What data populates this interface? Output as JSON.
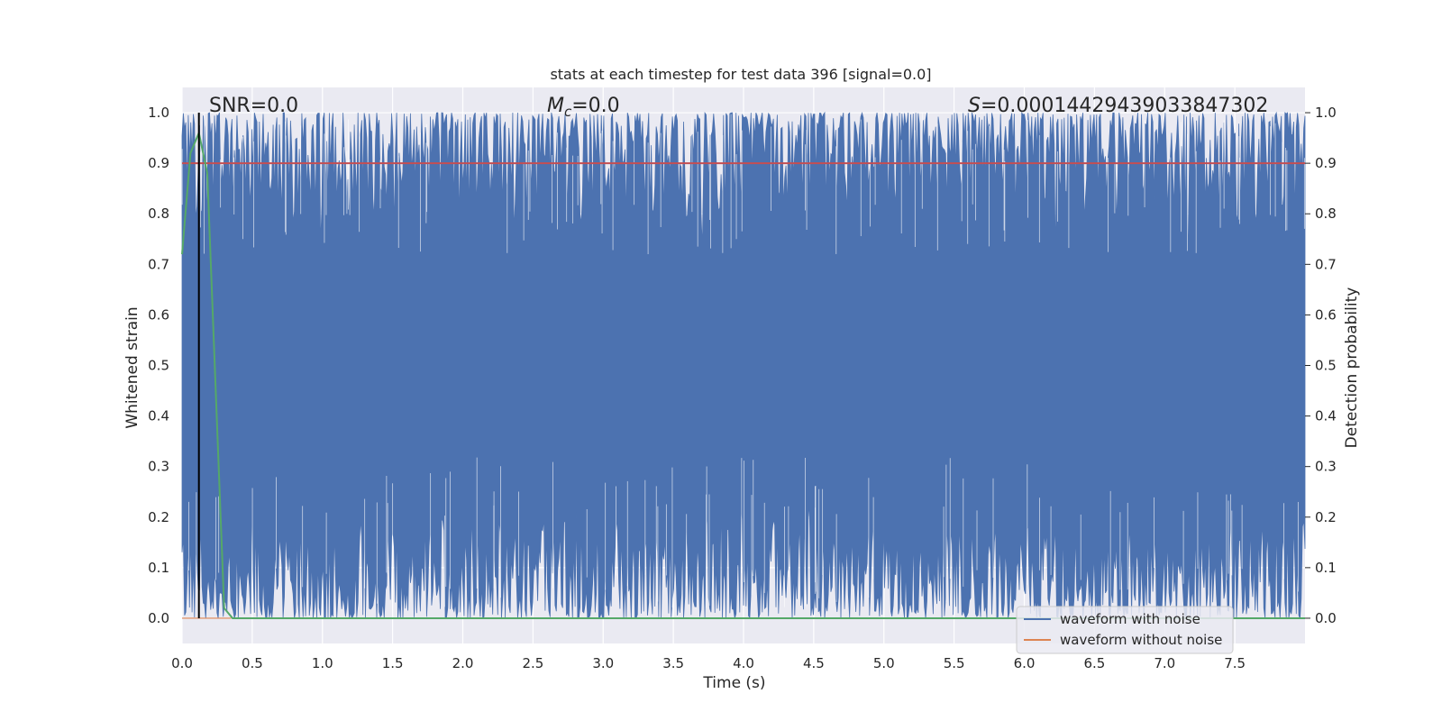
{
  "chart_data": {
    "type": "line",
    "title": "stats at each timestep for test data 396 [signal=0.0]",
    "xlabel": "Time (s)",
    "ylabel": "Whitened strain",
    "ylabel_right": "Detection probability",
    "xlim": [
      0.0,
      8.0
    ],
    "ylim": [
      -0.05,
      1.05
    ],
    "ylim_right": [
      -0.05,
      1.05
    ],
    "x_ticks": [
      "0.0",
      "0.5",
      "1.0",
      "1.5",
      "2.0",
      "2.5",
      "3.0",
      "3.5",
      "4.0",
      "4.5",
      "5.0",
      "5.5",
      "6.0",
      "6.5",
      "7.0",
      "7.5"
    ],
    "x_tick_values": [
      0.0,
      0.5,
      1.0,
      1.5,
      2.0,
      2.5,
      3.0,
      3.5,
      4.0,
      4.5,
      5.0,
      5.5,
      6.0,
      6.5,
      7.0,
      7.5
    ],
    "y_ticks": [
      "0.0",
      "0.1",
      "0.2",
      "0.3",
      "0.4",
      "0.5",
      "0.6",
      "0.7",
      "0.8",
      "0.9",
      "1.0"
    ],
    "y_tick_values": [
      0.0,
      0.1,
      0.2,
      0.3,
      0.4,
      0.5,
      0.6,
      0.7,
      0.8,
      0.9,
      1.0
    ],
    "y_ticks_right": [
      "0.0",
      "0.1",
      "0.2",
      "0.3",
      "0.4",
      "0.5",
      "0.6",
      "0.7",
      "0.8",
      "0.9",
      "1.0"
    ],
    "grid": true,
    "legend_position": "lower-right",
    "annotations": {
      "snr_prefix": "SNR=0.0",
      "mc_symbol": "M",
      "mc_subscript": "c",
      "mc_value": "=0.0",
      "s_symbol": "S",
      "s_value": "=0.00014429439033847302"
    },
    "series": [
      {
        "name": "waveform with noise",
        "color": "#4c72b0",
        "style": "dense noise band",
        "band_lower_typical": 0.05,
        "band_upper_typical": 0.95,
        "x_range": [
          0.0,
          8.0
        ]
      },
      {
        "name": "waveform without noise",
        "color": "#dd8452",
        "x": [
          0.0,
          0.35
        ],
        "y": [
          0.0,
          0.0
        ]
      },
      {
        "color": "#55a868",
        "x": [
          0.0,
          0.06,
          0.12,
          0.18,
          0.24,
          0.3,
          0.36,
          1.0,
          2.0,
          3.0,
          4.0,
          5.0,
          6.0,
          7.0,
          8.0
        ],
        "y": [
          0.72,
          0.92,
          0.96,
          0.88,
          0.45,
          0.02,
          0.0,
          0.0,
          0.0,
          0.0,
          0.0,
          0.0,
          0.0,
          0.0,
          0.0
        ]
      },
      {
        "color": "#c44e52",
        "x": [
          0.0,
          8.0
        ],
        "y": [
          0.9,
          0.9
        ]
      }
    ],
    "markers": {
      "vertical_line_x": 0.12,
      "vertical_line_color": "#000000"
    },
    "colors": {
      "background": "#eaeaf2",
      "grid": "#ffffff"
    }
  }
}
